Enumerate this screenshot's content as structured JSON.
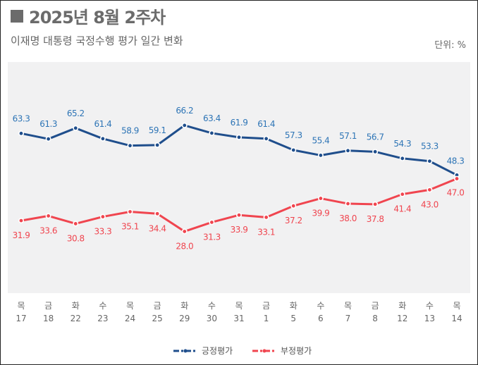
{
  "chart_data": {
    "type": "line",
    "title": "2025년 8월 2주차",
    "subtitle": "이재명 대통령 국정수행 평가 일간 변화",
    "unit_label": "단위: %",
    "categories": [
      {
        "dow": "목",
        "day": "17"
      },
      {
        "dow": "금",
        "day": "18"
      },
      {
        "dow": "화",
        "day": "22"
      },
      {
        "dow": "수",
        "day": "23"
      },
      {
        "dow": "목",
        "day": "24"
      },
      {
        "dow": "금",
        "day": "25"
      },
      {
        "dow": "화",
        "day": "29"
      },
      {
        "dow": "수",
        "day": "30"
      },
      {
        "dow": "목",
        "day": "31"
      },
      {
        "dow": "금",
        "day": "1"
      },
      {
        "dow": "화",
        "day": "5"
      },
      {
        "dow": "수",
        "day": "6"
      },
      {
        "dow": "목",
        "day": "7"
      },
      {
        "dow": "금",
        "day": "8"
      },
      {
        "dow": "화",
        "day": "12"
      },
      {
        "dow": "수",
        "day": "13"
      },
      {
        "dow": "목",
        "day": "14"
      }
    ],
    "series": [
      {
        "name": "긍정평가",
        "color": "#1f4e8c",
        "label_color": "#2e75b6",
        "values": [
          63.3,
          61.3,
          65.2,
          61.4,
          58.9,
          59.1,
          66.2,
          63.4,
          61.9,
          61.4,
          57.3,
          55.4,
          57.1,
          56.7,
          54.3,
          53.3,
          48.3
        ]
      },
      {
        "name": "부정평가",
        "color": "#f0454f",
        "label_color": "#f0454f",
        "values": [
          31.9,
          33.6,
          30.8,
          33.3,
          35.1,
          34.4,
          28.0,
          31.3,
          33.9,
          33.1,
          37.2,
          39.9,
          38.0,
          37.8,
          41.4,
          43.0,
          47.0
        ]
      }
    ],
    "ylim": [
      5.8,
      89
    ],
    "grid": false,
    "legend_position": "bottom-center"
  }
}
